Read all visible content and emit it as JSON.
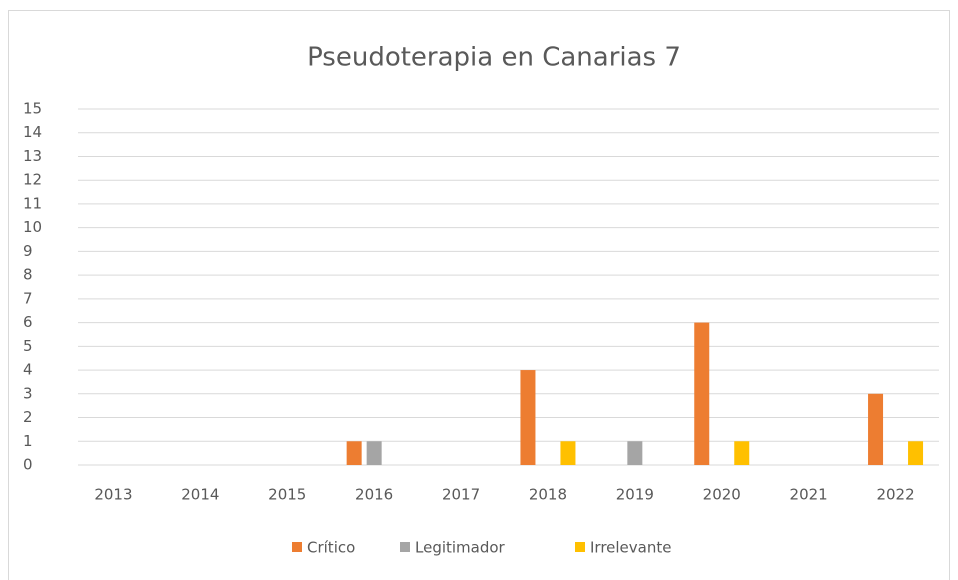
{
  "chart_data": {
    "type": "bar",
    "title": "Pseudoterapia en Canarias 7",
    "categories": [
      "2013",
      "2014",
      "2015",
      "2016",
      "2017",
      "2018",
      "2019",
      "2020",
      "2021",
      "2022"
    ],
    "series": [
      {
        "name": "Crítico",
        "color": "#ed7d31",
        "values": [
          0,
          0,
          0,
          1,
          0,
          4,
          0,
          6,
          0,
          3
        ]
      },
      {
        "name": "Legitimador",
        "color": "#a5a5a5",
        "values": [
          0,
          0,
          0,
          1,
          0,
          0,
          1,
          0,
          0,
          0
        ]
      },
      {
        "name": "Irrelevante",
        "color": "#ffc000",
        "values": [
          0,
          0,
          0,
          0,
          0,
          1,
          0,
          1,
          0,
          1
        ]
      }
    ],
    "ylim": [
      0,
      15
    ],
    "yticks": [
      0,
      1,
      2,
      3,
      4,
      5,
      6,
      7,
      8,
      9,
      10,
      11,
      12,
      13,
      14,
      15
    ],
    "grid": true,
    "legend": "bottom"
  }
}
